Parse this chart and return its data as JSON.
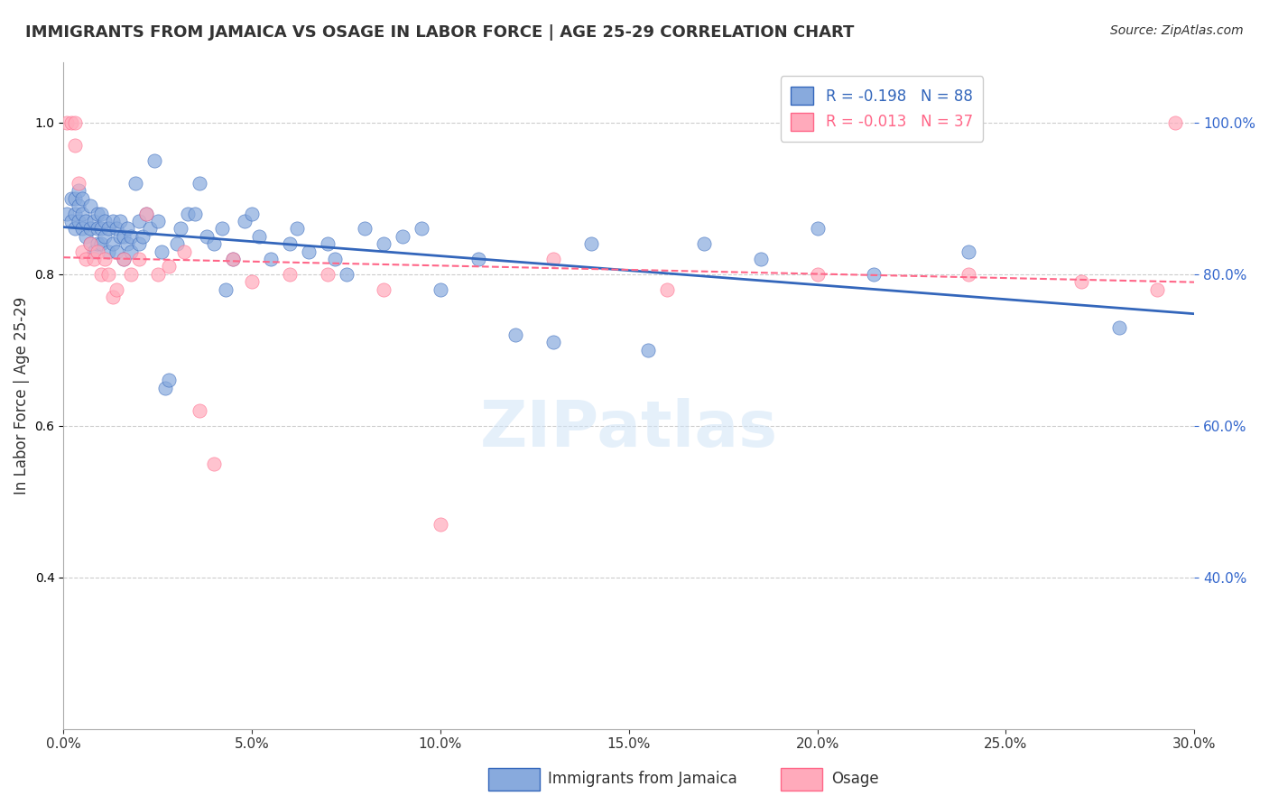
{
  "title": "IMMIGRANTS FROM JAMAICA VS OSAGE IN LABOR FORCE | AGE 25-29 CORRELATION CHART",
  "source": "Source: ZipAtlas.com",
  "xlabel": "",
  "ylabel": "In Labor Force | Age 25-29",
  "xlim": [
    0.0,
    0.3
  ],
  "ylim": [
    0.2,
    1.08
  ],
  "xticks": [
    0.0,
    0.05,
    0.1,
    0.15,
    0.2,
    0.25,
    0.3
  ],
  "yticks_right": [
    0.4,
    0.6,
    0.8,
    1.0
  ],
  "watermark": "ZIPatlas",
  "background_color": "#ffffff",
  "grid_color": "#cccccc",
  "blue_dot_color": "#88aadd",
  "pink_dot_color": "#ffaabb",
  "blue_line_color": "#3366bb",
  "pink_line_color": "#ff6688",
  "blue_r": -0.198,
  "blue_n": 88,
  "pink_r": -0.013,
  "pink_n": 37,
  "jamaica_x": [
    0.001,
    0.002,
    0.002,
    0.003,
    0.003,
    0.003,
    0.004,
    0.004,
    0.004,
    0.005,
    0.005,
    0.005,
    0.006,
    0.006,
    0.007,
    0.007,
    0.007,
    0.008,
    0.008,
    0.009,
    0.009,
    0.009,
    0.01,
    0.01,
    0.01,
    0.011,
    0.011,
    0.012,
    0.012,
    0.013,
    0.013,
    0.014,
    0.014,
    0.015,
    0.015,
    0.016,
    0.016,
    0.017,
    0.017,
    0.018,
    0.018,
    0.019,
    0.02,
    0.02,
    0.021,
    0.022,
    0.023,
    0.024,
    0.025,
    0.026,
    0.027,
    0.028,
    0.03,
    0.031,
    0.033,
    0.035,
    0.036,
    0.038,
    0.04,
    0.042,
    0.043,
    0.045,
    0.048,
    0.05,
    0.052,
    0.055,
    0.06,
    0.062,
    0.065,
    0.07,
    0.072,
    0.075,
    0.08,
    0.085,
    0.09,
    0.095,
    0.1,
    0.11,
    0.12,
    0.13,
    0.14,
    0.155,
    0.17,
    0.185,
    0.2,
    0.215,
    0.24,
    0.28
  ],
  "jamaica_y": [
    0.88,
    0.87,
    0.9,
    0.86,
    0.88,
    0.9,
    0.87,
    0.89,
    0.91,
    0.86,
    0.88,
    0.9,
    0.85,
    0.87,
    0.84,
    0.86,
    0.89,
    0.83,
    0.87,
    0.84,
    0.86,
    0.88,
    0.84,
    0.86,
    0.88,
    0.85,
    0.87,
    0.83,
    0.86,
    0.84,
    0.87,
    0.83,
    0.86,
    0.85,
    0.87,
    0.82,
    0.85,
    0.84,
    0.86,
    0.83,
    0.85,
    0.92,
    0.84,
    0.87,
    0.85,
    0.88,
    0.86,
    0.95,
    0.87,
    0.83,
    0.65,
    0.66,
    0.84,
    0.86,
    0.88,
    0.88,
    0.92,
    0.85,
    0.84,
    0.86,
    0.78,
    0.82,
    0.87,
    0.88,
    0.85,
    0.82,
    0.84,
    0.86,
    0.83,
    0.84,
    0.82,
    0.8,
    0.86,
    0.84,
    0.85,
    0.86,
    0.78,
    0.82,
    0.72,
    0.71,
    0.84,
    0.7,
    0.84,
    0.82,
    0.86,
    0.8,
    0.83,
    0.73
  ],
  "osage_x": [
    0.001,
    0.002,
    0.003,
    0.003,
    0.004,
    0.005,
    0.006,
    0.007,
    0.008,
    0.009,
    0.01,
    0.011,
    0.012,
    0.013,
    0.014,
    0.016,
    0.018,
    0.02,
    0.022,
    0.025,
    0.028,
    0.032,
    0.036,
    0.04,
    0.045,
    0.05,
    0.06,
    0.07,
    0.085,
    0.1,
    0.13,
    0.16,
    0.2,
    0.24,
    0.27,
    0.29,
    0.295
  ],
  "osage_y": [
    1.0,
    1.0,
    0.97,
    1.0,
    0.92,
    0.83,
    0.82,
    0.84,
    0.82,
    0.83,
    0.8,
    0.82,
    0.8,
    0.77,
    0.78,
    0.82,
    0.8,
    0.82,
    0.88,
    0.8,
    0.81,
    0.83,
    0.62,
    0.55,
    0.82,
    0.79,
    0.8,
    0.8,
    0.78,
    0.47,
    0.82,
    0.78,
    0.8,
    0.8,
    0.79,
    0.78,
    1.0
  ]
}
